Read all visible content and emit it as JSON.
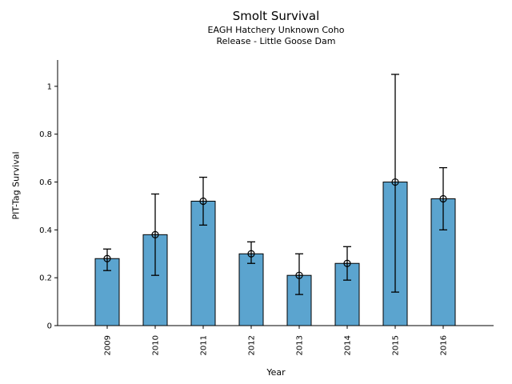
{
  "page": {
    "background": "#ffffff"
  },
  "chart_data": {
    "type": "bar",
    "title": "Smolt Survival",
    "subtitle1": "EAGH Hatchery Unknown Coho",
    "subtitle2": "Release - Little Goose Dam",
    "xlabel": "Year",
    "ylabel": "PIT-Tag Survival",
    "categories": [
      "2009",
      "2010",
      "2011",
      "2012",
      "2013",
      "2014",
      "2015",
      "2016"
    ],
    "values": [
      0.28,
      0.38,
      0.52,
      0.3,
      0.21,
      0.26,
      0.6,
      0.53
    ],
    "error_low": [
      0.23,
      0.21,
      0.42,
      0.26,
      0.13,
      0.19,
      0.14,
      0.4
    ],
    "error_high": [
      0.32,
      0.55,
      0.62,
      0.35,
      0.3,
      0.33,
      1.05,
      0.66
    ],
    "ytick_values": [
      0,
      0.2,
      0.4,
      0.6,
      0.8,
      1
    ],
    "ytick_labels": [
      "0",
      "0.2",
      "0.4",
      "0.6",
      "0.8",
      "1"
    ],
    "ylim": [
      0,
      1.11
    ],
    "x_tick_rotation": 90,
    "grid": false,
    "legend_position": "none",
    "bar_color": "#5BA4CF",
    "bar_edge_color": "#000000",
    "errorbar_color": "#000000",
    "marker": "open-circle-crosshair",
    "axis_color": "#000000"
  }
}
